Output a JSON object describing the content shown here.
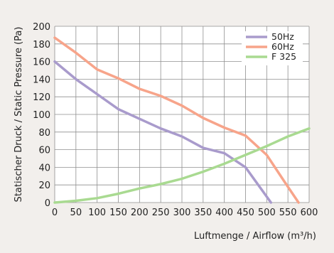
{
  "chart_data": {
    "type": "line",
    "xlabel": "Luftmenge / Airflow (m³/h)",
    "ylabel": "Statischer Druck / Static Pressure (Pa)",
    "xlim": [
      0,
      600
    ],
    "ylim": [
      0,
      200
    ],
    "x_ticks": [
      "0",
      "50",
      "100",
      "150",
      "200",
      "250",
      "300",
      "350",
      "400",
      "450",
      "500",
      "550",
      "600"
    ],
    "y_ticks": [
      "0",
      "20",
      "40",
      "60",
      "80",
      "100",
      "120",
      "140",
      "160",
      "180",
      "200"
    ],
    "grid": true,
    "legend_position": "top-right",
    "series": [
      {
        "name": "50Hz",
        "color": "#a99bcc",
        "x": [
          0,
          50,
          100,
          150,
          200,
          250,
          300,
          350,
          400,
          450,
          510
        ],
        "y": [
          160,
          140,
          123,
          106,
          95,
          84,
          75,
          62,
          56,
          40,
          0
        ]
      },
      {
        "name": "60Hz",
        "color": "#f7a48a",
        "x": [
          0,
          50,
          100,
          150,
          200,
          250,
          300,
          350,
          400,
          450,
          500,
          540,
          575
        ],
        "y": [
          187,
          170,
          151,
          141,
          129,
          121,
          110,
          96,
          85,
          76,
          54,
          25,
          0
        ]
      },
      {
        "name": "F 325",
        "color": "#a9da91",
        "x": [
          0,
          50,
          100,
          150,
          200,
          250,
          300,
          350,
          400,
          450,
          500,
          550,
          600
        ],
        "y": [
          0,
          2,
          5,
          10,
          16,
          21,
          27,
          35,
          44,
          54,
          64,
          75,
          84
        ]
      }
    ]
  }
}
